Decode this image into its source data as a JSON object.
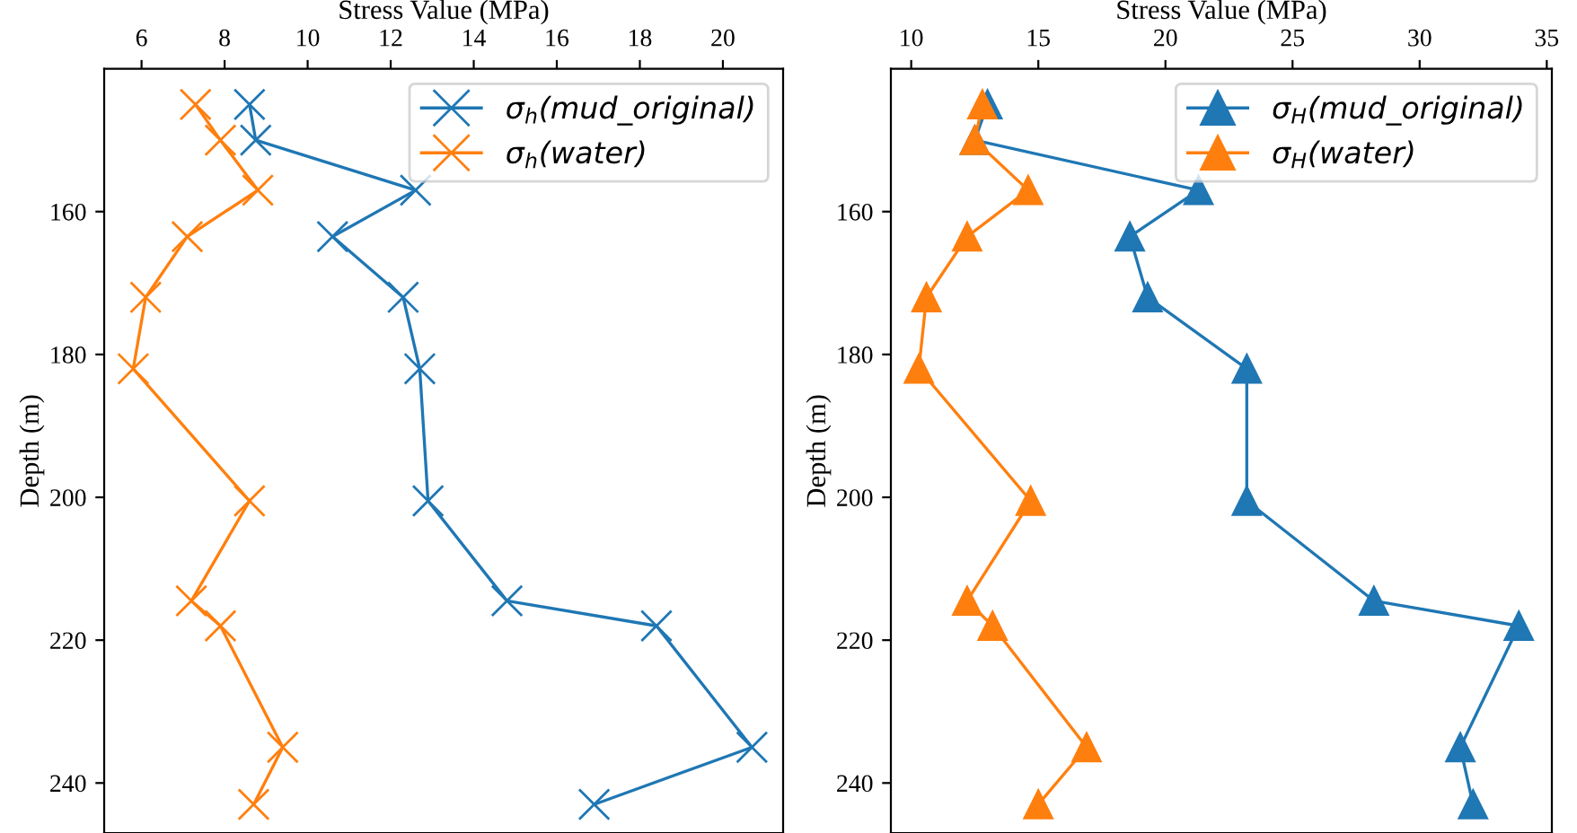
{
  "chart_data": [
    {
      "type": "line",
      "xlabel": "Stress Value (MPa)",
      "ylabel": "Depth (m)",
      "xlim": [
        5.1,
        21.45
      ],
      "xticks": [
        6,
        8,
        10,
        12,
        14,
        16,
        18,
        20
      ],
      "ylim": [
        247,
        140
      ],
      "yticks": [
        160,
        180,
        200,
        220,
        240
      ],
      "marker": "cross",
      "legend": "top right",
      "series": [
        {
          "name": "σ$_{h}$(mud_original)",
          "color": "#1f77b4",
          "x": [
            8.6,
            8.75,
            12.6,
            10.6,
            12.3,
            12.7,
            12.9,
            14.8,
            18.4,
            20.7,
            16.9
          ],
          "values": [
            145,
            150,
            157,
            163.5,
            172,
            182,
            200.5,
            214.5,
            218,
            235,
            243
          ]
        },
        {
          "name": "σ$_{h}$(water)",
          "color": "#ff7f0e",
          "x": [
            7.3,
            7.9,
            8.8,
            7.1,
            6.1,
            5.8,
            8.6,
            7.2,
            7.9,
            9.4,
            8.7
          ],
          "values": [
            145,
            150,
            157,
            163.5,
            172,
            182,
            200.5,
            214.5,
            218,
            235,
            243
          ]
        }
      ]
    },
    {
      "type": "line",
      "xlabel": "Stress Value (MPa)",
      "ylabel": "Depth (m)",
      "xlim": [
        9.2,
        35.2
      ],
      "xticks": [
        10,
        15,
        20,
        25,
        30,
        35
      ],
      "ylim": [
        247,
        140
      ],
      "yticks": [
        160,
        180,
        200,
        220,
        240
      ],
      "marker": "triangle",
      "legend": "top right",
      "series": [
        {
          "name": "σ$_{H}$(mud_original)",
          "color": "#1f77b4",
          "x": [
            13.0,
            12.5,
            21.3,
            18.6,
            19.3,
            23.2,
            23.2,
            28.2,
            33.9,
            31.6,
            32.1
          ],
          "values": [
            145,
            150,
            157,
            163.5,
            172,
            182,
            200.5,
            214.5,
            218,
            235,
            243
          ]
        },
        {
          "name": "σ$_{H}$(water)",
          "color": "#ff7f0e",
          "x": [
            12.8,
            12.5,
            14.6,
            12.2,
            10.6,
            10.3,
            14.7,
            12.2,
            13.2,
            16.9,
            15.0
          ],
          "values": [
            145,
            150,
            157,
            163.5,
            172,
            182,
            200.5,
            214.5,
            218,
            235,
            243
          ]
        }
      ]
    }
  ]
}
